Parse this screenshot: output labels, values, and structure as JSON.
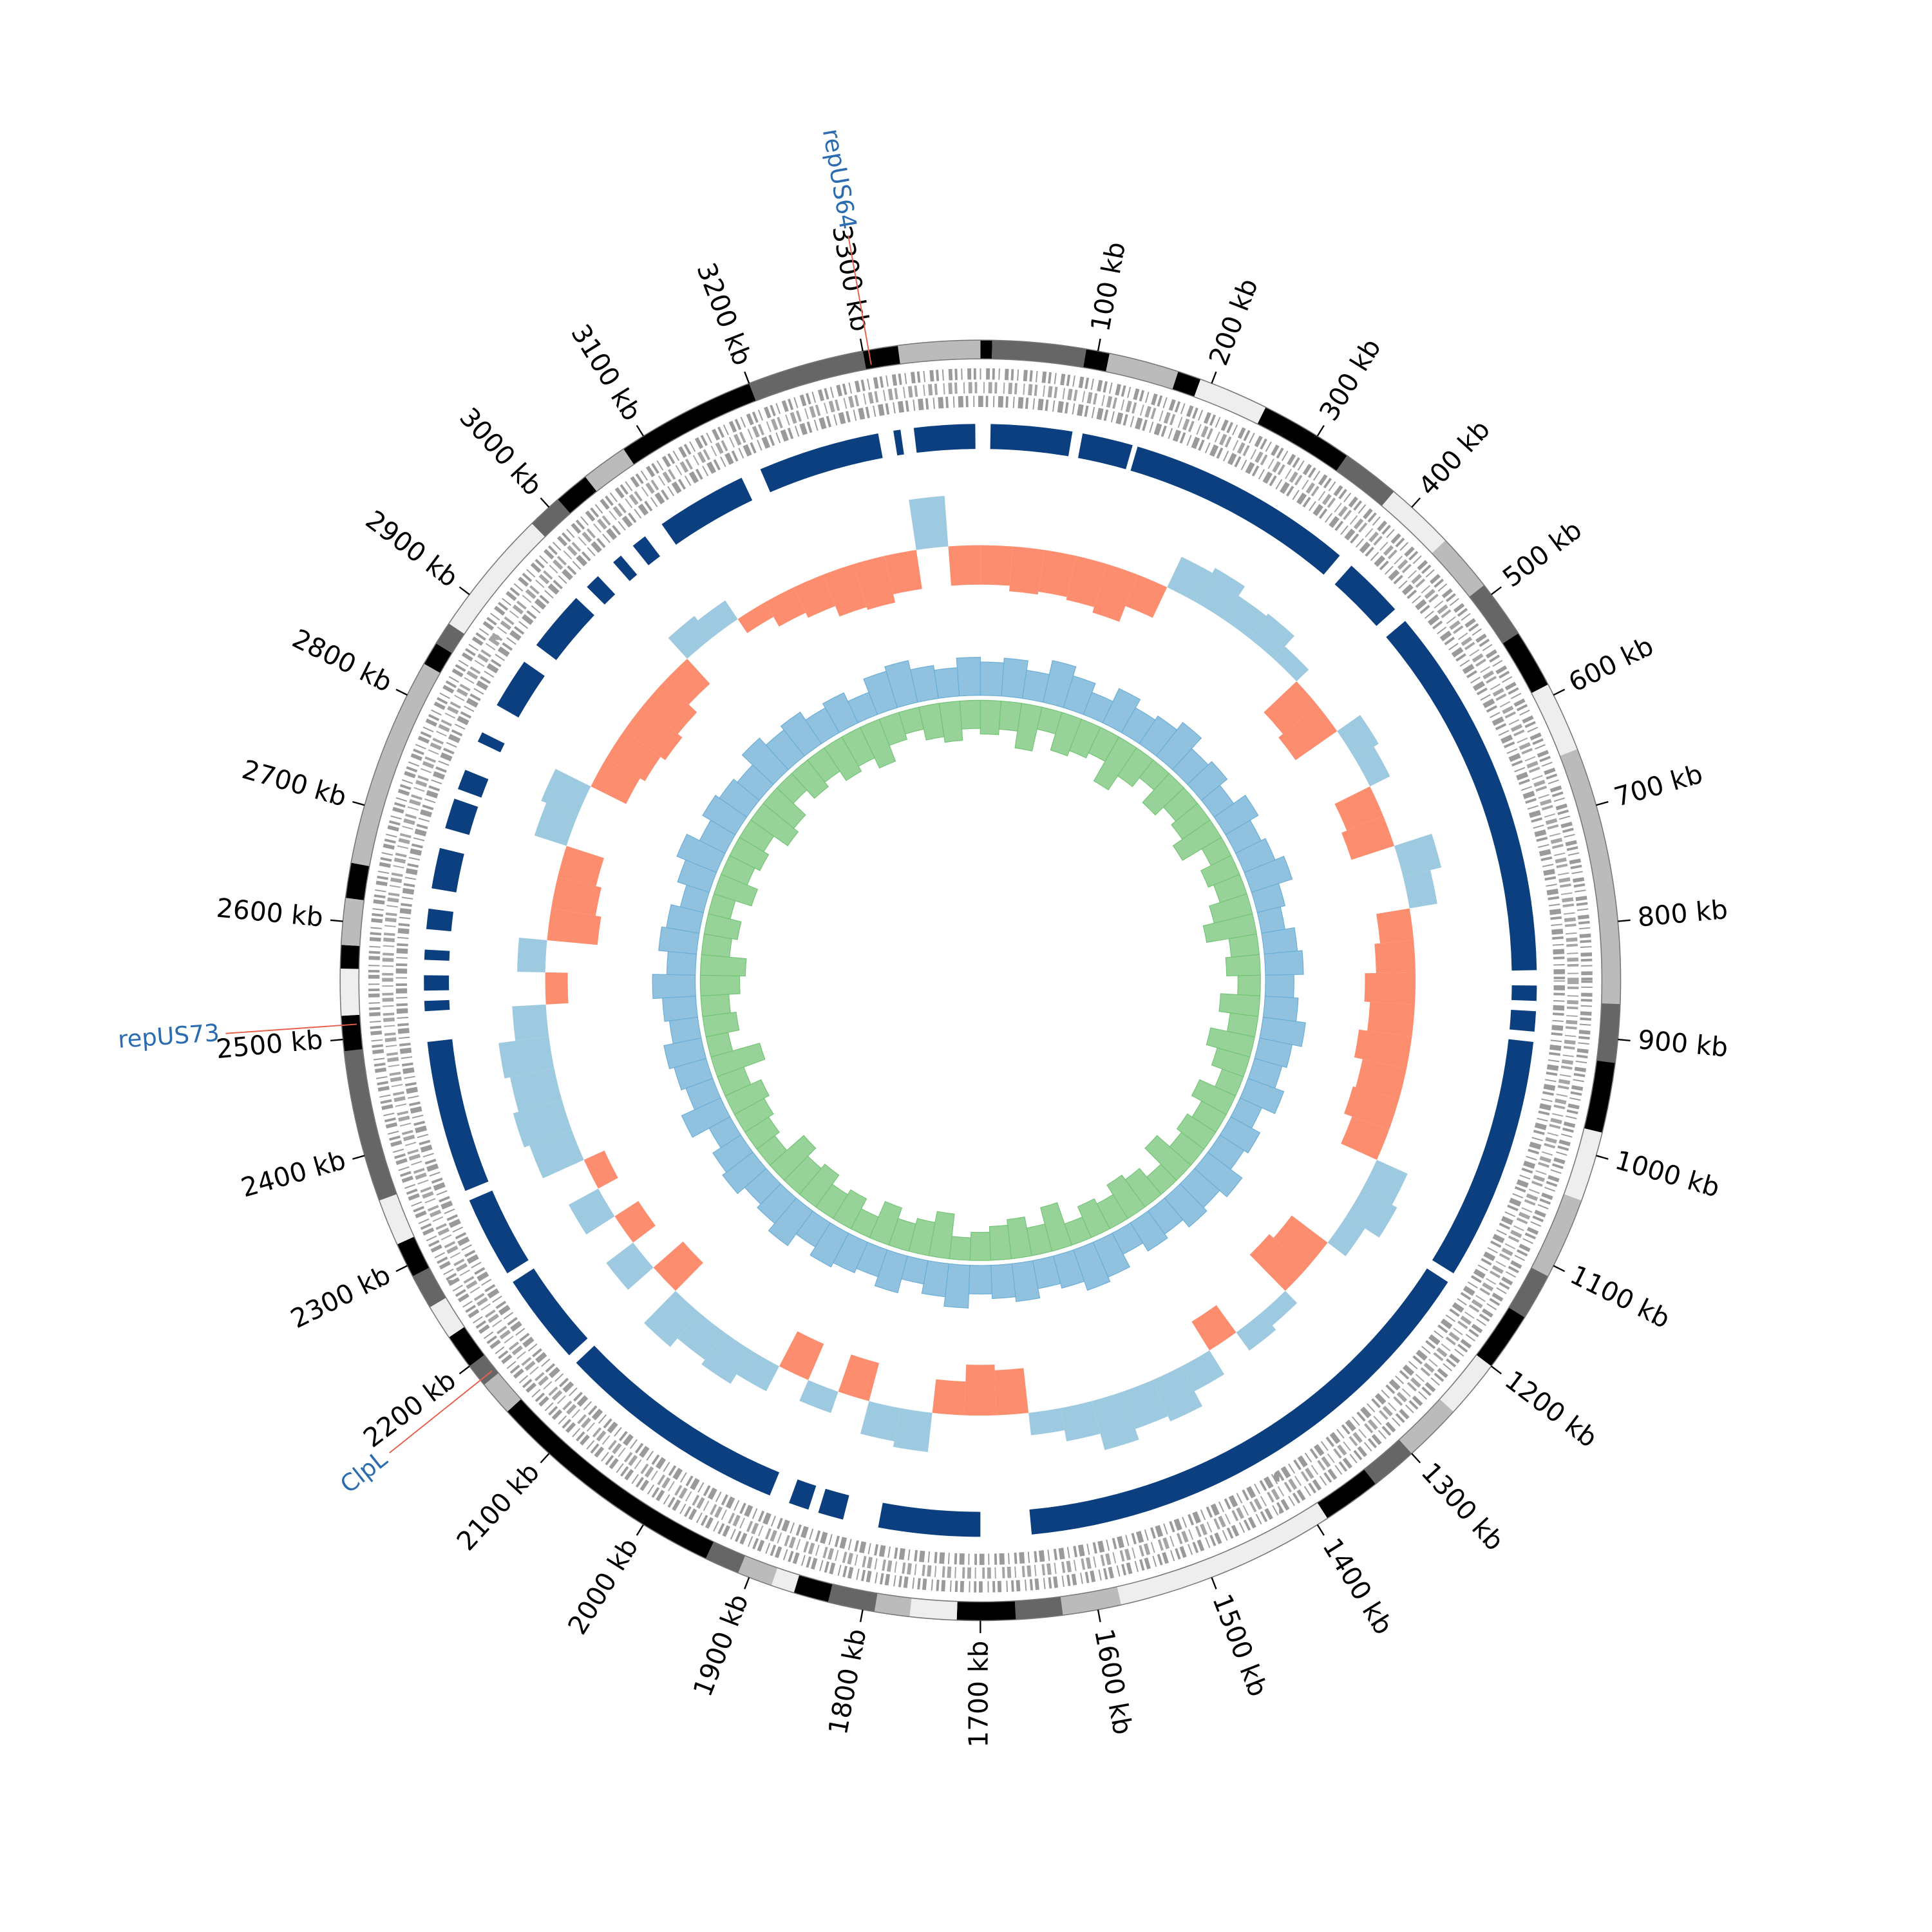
{
  "chart_data": {
    "type": "circos",
    "xlim": [
      0,
      3400
    ],
    "xticks": [
      {
        "value": 100,
        "label": "100 kb"
      },
      {
        "value": 200,
        "label": "200 kb"
      },
      {
        "value": 300,
        "label": "300 kb"
      },
      {
        "value": 400,
        "label": "400 kb"
      },
      {
        "value": 500,
        "label": "500 kb"
      },
      {
        "value": 600,
        "label": "600 kb"
      },
      {
        "value": 700,
        "label": "700 kb"
      },
      {
        "value": 800,
        "label": "800 kb"
      },
      {
        "value": 900,
        "label": "900 kb"
      },
      {
        "value": 1000,
        "label": "1000 kb"
      },
      {
        "value": 1100,
        "label": "1100 kb"
      },
      {
        "value": 1200,
        "label": "1200 kb"
      },
      {
        "value": 1300,
        "label": "1300 kb"
      },
      {
        "value": 1400,
        "label": "1400 kb"
      },
      {
        "value": 1500,
        "label": "1500 kb"
      },
      {
        "value": 1600,
        "label": "1600 kb"
      },
      {
        "value": 1700,
        "label": "1700 kb"
      },
      {
        "value": 1800,
        "label": "1800 kb"
      },
      {
        "value": 1900,
        "label": "1900 kb"
      },
      {
        "value": 2000,
        "label": "2000 kb"
      },
      {
        "value": 2100,
        "label": "2100 kb"
      },
      {
        "value": 2200,
        "label": "2200 kb"
      },
      {
        "value": 2300,
        "label": "2300 kb"
      },
      {
        "value": 2400,
        "label": "2400 kb"
      },
      {
        "value": 2500,
        "label": "2500 kb"
      },
      {
        "value": 2600,
        "label": "2600 kb"
      },
      {
        "value": 2700,
        "label": "2700 kb"
      },
      {
        "value": 2800,
        "label": "2800 kb"
      },
      {
        "value": 2900,
        "label": "2900 kb"
      },
      {
        "value": 3000,
        "label": "3000 kb"
      },
      {
        "value": 3100,
        "label": "3100 kb"
      },
      {
        "value": 3200,
        "label": "3200 kb"
      },
      {
        "value": 3300,
        "label": "3300 kb"
      }
    ],
    "annotations": [
      {
        "label": "repUS64",
        "position": 3305
      },
      {
        "label": "repUS73",
        "position": 2512
      },
      {
        "label": "ClpL",
        "position": 2185
      }
    ],
    "annotation_color": "#2b6cb0",
    "annotation_line_color": "#e8604c",
    "band_edges": [
      0,
      10,
      90,
      110,
      170,
      190,
      250,
      330,
      380,
      440,
      490,
      540,
      590,
      650,
      870,
      920,
      980,
      1040,
      1110,
      1150,
      1200,
      1250,
      1300,
      1340,
      1390,
      1580,
      1630,
      1670,
      1720,
      1760,
      1790,
      1830,
      1860,
      1880,
      1910,
      1940,
      2150,
      2180,
      2200,
      2230,
      2260,
      2290,
      2320,
      2360,
      2490,
      2520,
      2560,
      2580,
      2620,
      2650,
      2830,
      2850,
      2870,
      2980,
      3010,
      3040,
      3080,
      3200,
      3300,
      3330,
      3400
    ],
    "band_colors": [
      "#000000",
      "#666666",
      "#000000",
      "#bbbbbb",
      "#000000",
      "#eeeeee",
      "#000000",
      "#666666",
      "#eeeeee",
      "#bbbbbb",
      "#666666",
      "#000000",
      "#eeeeee",
      "#bbbbbb",
      "#666666",
      "#000000",
      "#eeeeee",
      "#bbbbbb",
      "#666666",
      "#000000",
      "#eeeeee",
      "#bbbbbb",
      "#666666",
      "#000000",
      "#eeeeee",
      "#bbbbbb",
      "#666666",
      "#000000",
      "#eeeeee",
      "#bbbbbb",
      "#666666",
      "#000000",
      "#eeeeee",
      "#bbbbbb",
      "#666666",
      "#000000",
      "#bbbbbb",
      "#666666",
      "#000000",
      "#eeeeee",
      "#666666",
      "#000000",
      "#eeeeee",
      "#666666",
      "#000000",
      "#eeeeee",
      "#000000",
      "#bbbbbb",
      "#000000",
      "#bbbbbb",
      "#000000",
      "#666666",
      "#eeeeee",
      "#666666",
      "#000000",
      "#bbbbbb",
      "#000000",
      "#666666",
      "#000000",
      "#bbbbbb"
    ],
    "blocks": [
      [
        3315,
        3322
      ],
      [
        3335,
        3395
      ],
      [
        10,
        90
      ],
      [
        100,
        150
      ],
      [
        155,
        380
      ],
      [
        395,
        455
      ],
      [
        470,
        840
      ],
      [
        855,
        870
      ],
      [
        880,
        900
      ],
      [
        910,
        1150
      ],
      [
        1160,
        1650
      ],
      [
        1700,
        1800
      ],
      [
        1835,
        1860
      ],
      [
        1870,
        1890
      ],
      [
        1910,
        2140
      ],
      [
        2150,
        2240
      ],
      [
        2250,
        2330
      ],
      [
        2340,
        2490
      ],
      [
        2520,
        2530
      ],
      [
        2540,
        2555
      ],
      [
        2570,
        2580
      ],
      [
        2600,
        2620
      ],
      [
        2640,
        2680
      ],
      [
        2700,
        2730
      ],
      [
        2740,
        2760
      ],
      [
        2790,
        2800
      ],
      [
        2830,
        2880
      ],
      [
        2900,
        2960
      ],
      [
        2975,
        2990
      ],
      [
        3010,
        3020
      ],
      [
        3035,
        3050
      ],
      [
        3070,
        3160
      ],
      [
        3180,
        3300
      ]
    ],
    "block_color": "#0b3f7f",
    "bins": [
      0,
      40,
      80,
      120,
      160,
      200,
      240,
      280,
      320,
      360,
      400,
      440,
      480,
      520,
      560,
      600,
      640,
      680,
      720,
      760,
      800,
      840,
      880,
      920,
      960,
      1000,
      1040,
      1080,
      1120,
      1160,
      1200,
      1240,
      1280,
      1320,
      1360,
      1400,
      1440,
      1480,
      1520,
      1560,
      1600,
      1640,
      1680,
      1720,
      1760,
      1800,
      1840,
      1880,
      1920,
      1960,
      2000,
      2040,
      2080,
      2120,
      2160,
      2200,
      2240,
      2280,
      2320,
      2360,
      2400,
      2440,
      2480,
      2520,
      2560,
      2600,
      2640,
      2680,
      2720,
      2760,
      2800,
      2840,
      2880,
      2920,
      2960,
      3000,
      3040,
      3080,
      3120,
      3160,
      3200,
      3240,
      3280,
      3320,
      3360,
      3400
    ],
    "skew": {
      "values": [
        -0.7,
        -0.8,
        -0.75,
        -0.8,
        -0.9,
        -0.6,
        0.6,
        0.7,
        0.5,
        0.55,
        0.3,
        -0.8,
        -0.9,
        0.5,
        0.4,
        -0.7,
        -0.8,
        0.7,
        0.5,
        -0.6,
        -0.7,
        -0.9,
        -0.8,
        -0.95,
        -0.8,
        -0.85,
        -0.7,
        0.6,
        0.7,
        0.4,
        -0.8,
        -0.9,
        0.3,
        0.4,
        -0.6,
        0.5,
        0.8,
        0.7,
        0.9,
        0.6,
        0.4,
        -0.8,
        -0.9,
        -0.6,
        0.7,
        0.6,
        -0.7,
        0.4,
        -0.7,
        0.5,
        0.7,
        0.6,
        0.8,
        -0.7,
        0.6,
        -0.5,
        0.6,
        -0.4,
        0.8,
        0.9,
        0.8,
        0.9,
        0.6,
        -0.4,
        0.5,
        -0.9,
        -0.8,
        -0.7,
        0.6,
        0.7,
        -0.7,
        -0.8,
        -0.9,
        -0.8,
        -0.6,
        0.5,
        0.4,
        -0.3,
        -0.5,
        -0.6,
        -0.8,
        -0.85,
        -0.7,
        0.9,
        -0.7
      ],
      "ylim": [
        -1,
        1
      ],
      "positive_color": "#9ecae1",
      "negative_color": "#fc8d6e"
    },
    "inner": {
      "ylim": [
        0,
        1
      ],
      "series": [
        {
          "color": "#6baed6",
          "values": [
            0.7,
            0.8,
            0.6,
            0.9,
            0.7,
            0.5,
            0.8,
            0.6,
            0.7,
            0.9,
            0.6,
            0.7,
            0.5,
            0.8,
            0.6,
            0.7,
            0.9,
            0.6,
            0.5,
            0.7,
            0.8,
            0.6,
            0.7,
            0.9,
            0.7,
            0.6,
            0.8,
            0.5,
            0.7,
            0.6,
            0.9,
            0.7,
            0.8,
            0.6,
            0.7,
            0.5,
            0.8,
            0.9,
            0.7,
            0.6,
            0.8,
            0.7,
            0.6,
            0.9,
            0.7,
            0.5,
            0.8,
            0.6,
            0.7,
            0.8,
            0.6,
            0.9,
            0.7,
            0.6,
            0.8,
            0.7,
            0.5,
            0.9,
            0.6,
            0.7,
            0.8,
            0.6,
            0.7,
            0.9,
            0.6,
            0.8,
            0.7,
            0.5,
            0.7,
            0.9,
            0.6,
            0.8,
            0.7,
            0.6,
            0.9,
            0.7,
            0.8,
            0.6,
            0.7,
            0.5,
            0.8,
            0.9,
            0.7,
            0.6,
            0.8
          ]
        },
        {
          "color": "#74c476",
          "values": [
            0.6,
            0.5,
            0.8,
            0.4,
            0.7,
            0.6,
            0.5,
            0.9,
            0.6,
            0.4,
            0.7,
            0.5,
            0.6,
            0.8,
            0.4,
            0.6,
            0.5,
            0.7,
            0.9,
            0.5,
            0.6,
            0.4,
            0.7,
            0.5,
            0.8,
            0.6,
            0.4,
            0.7,
            0.5,
            0.6,
            0.5,
            0.8,
            0.4,
            0.6,
            0.7,
            0.5,
            0.6,
            0.4,
            0.8,
            0.5,
            0.7,
            0.6,
            0.5,
            0.4,
            0.8,
            0.6,
            0.5,
            0.7,
            0.4,
            0.6,
            0.5,
            0.7,
            0.6,
            0.8,
            0.4,
            0.5,
            0.6,
            0.7,
            0.5,
            0.9,
            0.4,
            0.6,
            0.5,
            0.7,
            0.8,
            0.5,
            0.6,
            0.4,
            0.7,
            0.5,
            0.6,
            0.5,
            0.8,
            0.7,
            0.4,
            0.6,
            0.5,
            0.7,
            0.6,
            0.8,
            0.5,
            0.4,
            0.6,
            0.7,
            0.5
          ]
        }
      ]
    }
  }
}
